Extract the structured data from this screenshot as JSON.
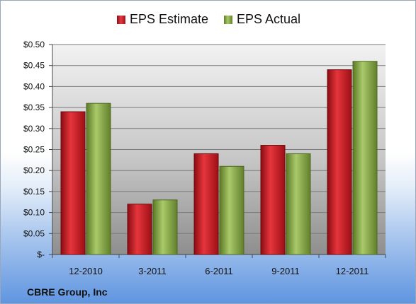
{
  "company": "CBRE Group, Inc",
  "colors": {
    "estimate": "#c8161d",
    "actual": "#8cb04a",
    "background_bottom": "#5f95e0"
  },
  "chart_data": {
    "type": "bar",
    "categories": [
      "12-2010",
      "3-2011",
      "6-2011",
      "9-2011",
      "12-2011"
    ],
    "series": [
      {
        "name": "EPS Estimate",
        "values": [
          0.34,
          0.12,
          0.24,
          0.26,
          0.44
        ]
      },
      {
        "name": "EPS Actual",
        "values": [
          0.36,
          0.13,
          0.21,
          0.24,
          0.46
        ]
      }
    ],
    "ylim": [
      0,
      0.5
    ],
    "yticks": [
      0,
      0.05,
      0.1,
      0.15,
      0.2,
      0.25,
      0.3,
      0.35,
      0.4,
      0.45,
      0.5
    ],
    "ytick_labels": [
      "$-",
      "$0.05",
      "$0.10",
      "$0.15",
      "$0.20",
      "$0.25",
      "$0.30",
      "$0.35",
      "$0.40",
      "$0.45",
      "$0.50"
    ],
    "legend": "top-center",
    "grid": true
  }
}
